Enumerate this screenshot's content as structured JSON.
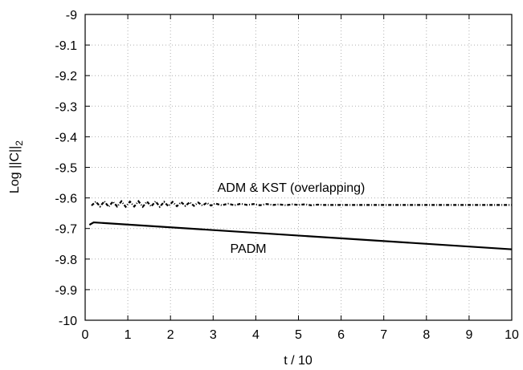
{
  "chart_data": {
    "type": "line",
    "xlabel": "t / 10",
    "ylabel": "Log ||C||",
    "ylabel_subscript": "2",
    "xlim": [
      0,
      10
    ],
    "ylim": [
      -10,
      -9
    ],
    "grid": true,
    "x_ticks": [
      "0",
      "1",
      "2",
      "3",
      "4",
      "5",
      "6",
      "7",
      "8",
      "9",
      "10"
    ],
    "y_ticks": [
      "-9",
      "-9.1",
      "-9.2",
      "-9.3",
      "-9.4",
      "-9.5",
      "-9.6",
      "-9.7",
      "-9.8",
      "-9.9",
      "-10"
    ],
    "series": [
      {
        "style": "dotted-dashed",
        "x": [
          0.15,
          0.25,
          0.35,
          0.45,
          0.55,
          0.65,
          0.75,
          0.85,
          0.95,
          1.05,
          1.15,
          1.25,
          1.35,
          1.45,
          1.55,
          1.65,
          1.75,
          1.85,
          1.95,
          2.05,
          2.15,
          2.25,
          2.35,
          2.45,
          2.55,
          2.65,
          2.75,
          2.85,
          2.95,
          3.05,
          3.2,
          3.35,
          3.5,
          3.65,
          3.8,
          3.95,
          4.1,
          4.25,
          4.4,
          4.55,
          4.7,
          4.85,
          5.0,
          5.15,
          5.3,
          5.45,
          5.6,
          6.0,
          7.0,
          8.0,
          9.0,
          10.0
        ],
        "y": [
          -9.625,
          -9.612,
          -9.628,
          -9.611,
          -9.629,
          -9.612,
          -9.628,
          -9.611,
          -9.629,
          -9.612,
          -9.628,
          -9.611,
          -9.629,
          -9.612,
          -9.628,
          -9.611,
          -9.629,
          -9.613,
          -9.627,
          -9.613,
          -9.627,
          -9.614,
          -9.626,
          -9.614,
          -9.626,
          -9.615,
          -9.625,
          -9.616,
          -9.625,
          -9.618,
          -9.624,
          -9.619,
          -9.624,
          -9.619,
          -9.623,
          -9.62,
          -9.624,
          -9.62,
          -9.623,
          -9.621,
          -9.624,
          -9.621,
          -9.623,
          -9.621,
          -9.624,
          -9.622,
          -9.623,
          -9.623,
          -9.623,
          -9.623,
          -9.623,
          -9.623
        ]
      },
      {
        "style": "solid",
        "x": [
          0.1,
          0.2,
          10.0
        ],
        "y": [
          -9.688,
          -9.68,
          -9.768
        ]
      }
    ],
    "annotations": [
      {
        "text": "ADM & KST (overlapping)",
        "x": 3.1,
        "y": -9.58
      },
      {
        "text": "PADM",
        "x": 3.4,
        "y": -9.78
      }
    ]
  }
}
